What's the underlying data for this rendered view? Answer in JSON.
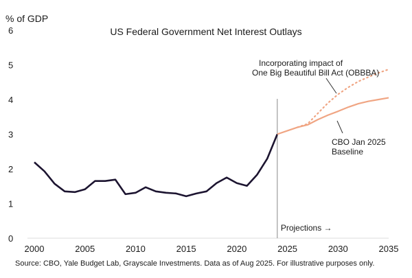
{
  "chart_data": {
    "type": "line",
    "title": "US Federal Government Net Interest Outlays",
    "ylabel": "% of GDP",
    "xlabel": "",
    "xlim": [
      2000,
      2035
    ],
    "ylim": [
      0,
      6
    ],
    "x_ticks": [
      "2000",
      "2005",
      "2010",
      "2015",
      "2020",
      "2025",
      "2030",
      "2035"
    ],
    "y_ticks": [
      "0",
      "1",
      "2",
      "3",
      "4",
      "5",
      "6"
    ],
    "grid": false,
    "projection_start": 2024,
    "projection_label": "Projections →",
    "series": [
      {
        "key": "historical",
        "color": "#1c1430",
        "style": "solid",
        "x": [
          2000,
          2001,
          2002,
          2003,
          2004,
          2005,
          2006,
          2007,
          2008,
          2009,
          2010,
          2011,
          2012,
          2013,
          2014,
          2015,
          2016,
          2017,
          2018,
          2019,
          2020,
          2021,
          2022,
          2023,
          2024
        ],
        "y": [
          2.19,
          1.93,
          1.57,
          1.35,
          1.33,
          1.41,
          1.65,
          1.65,
          1.69,
          1.27,
          1.31,
          1.47,
          1.35,
          1.31,
          1.29,
          1.21,
          1.29,
          1.35,
          1.59,
          1.75,
          1.59,
          1.51,
          1.83,
          2.29,
          3.0
        ]
      },
      {
        "key": "baseline",
        "name": "CBO Jan 2025 Baseline",
        "color": "#f0a583",
        "style": "solid",
        "x": [
          2024,
          2025,
          2026,
          2027,
          2028,
          2029,
          2030,
          2031,
          2032,
          2033,
          2034,
          2035
        ],
        "y": [
          3.0,
          3.1,
          3.2,
          3.27,
          3.42,
          3.55,
          3.66,
          3.78,
          3.88,
          3.95,
          4.0,
          4.05
        ]
      },
      {
        "key": "obbba",
        "name": "Incorporating impact of One Big Beautiful Bill Act (OBBBA)",
        "color": "#f0a583",
        "style": "dotted",
        "x": [
          2026,
          2027,
          2028,
          2029,
          2030,
          2031,
          2032,
          2033,
          2034,
          2035
        ],
        "y": [
          3.2,
          3.3,
          3.6,
          3.9,
          4.15,
          4.35,
          4.52,
          4.65,
          4.77,
          4.87
        ]
      }
    ],
    "annotations": {
      "obbba_line1": "Incorporating impact of",
      "obbba_line2": "One Big Beautiful Bill Act (OBBBA)",
      "baseline_line1": "CBO Jan 2025",
      "baseline_line2": "Baseline"
    },
    "source": "Source: CBO, Yale Budget Lab, Grayscale Investments. Data as of Aug 2025. For illustrative purposes only."
  }
}
